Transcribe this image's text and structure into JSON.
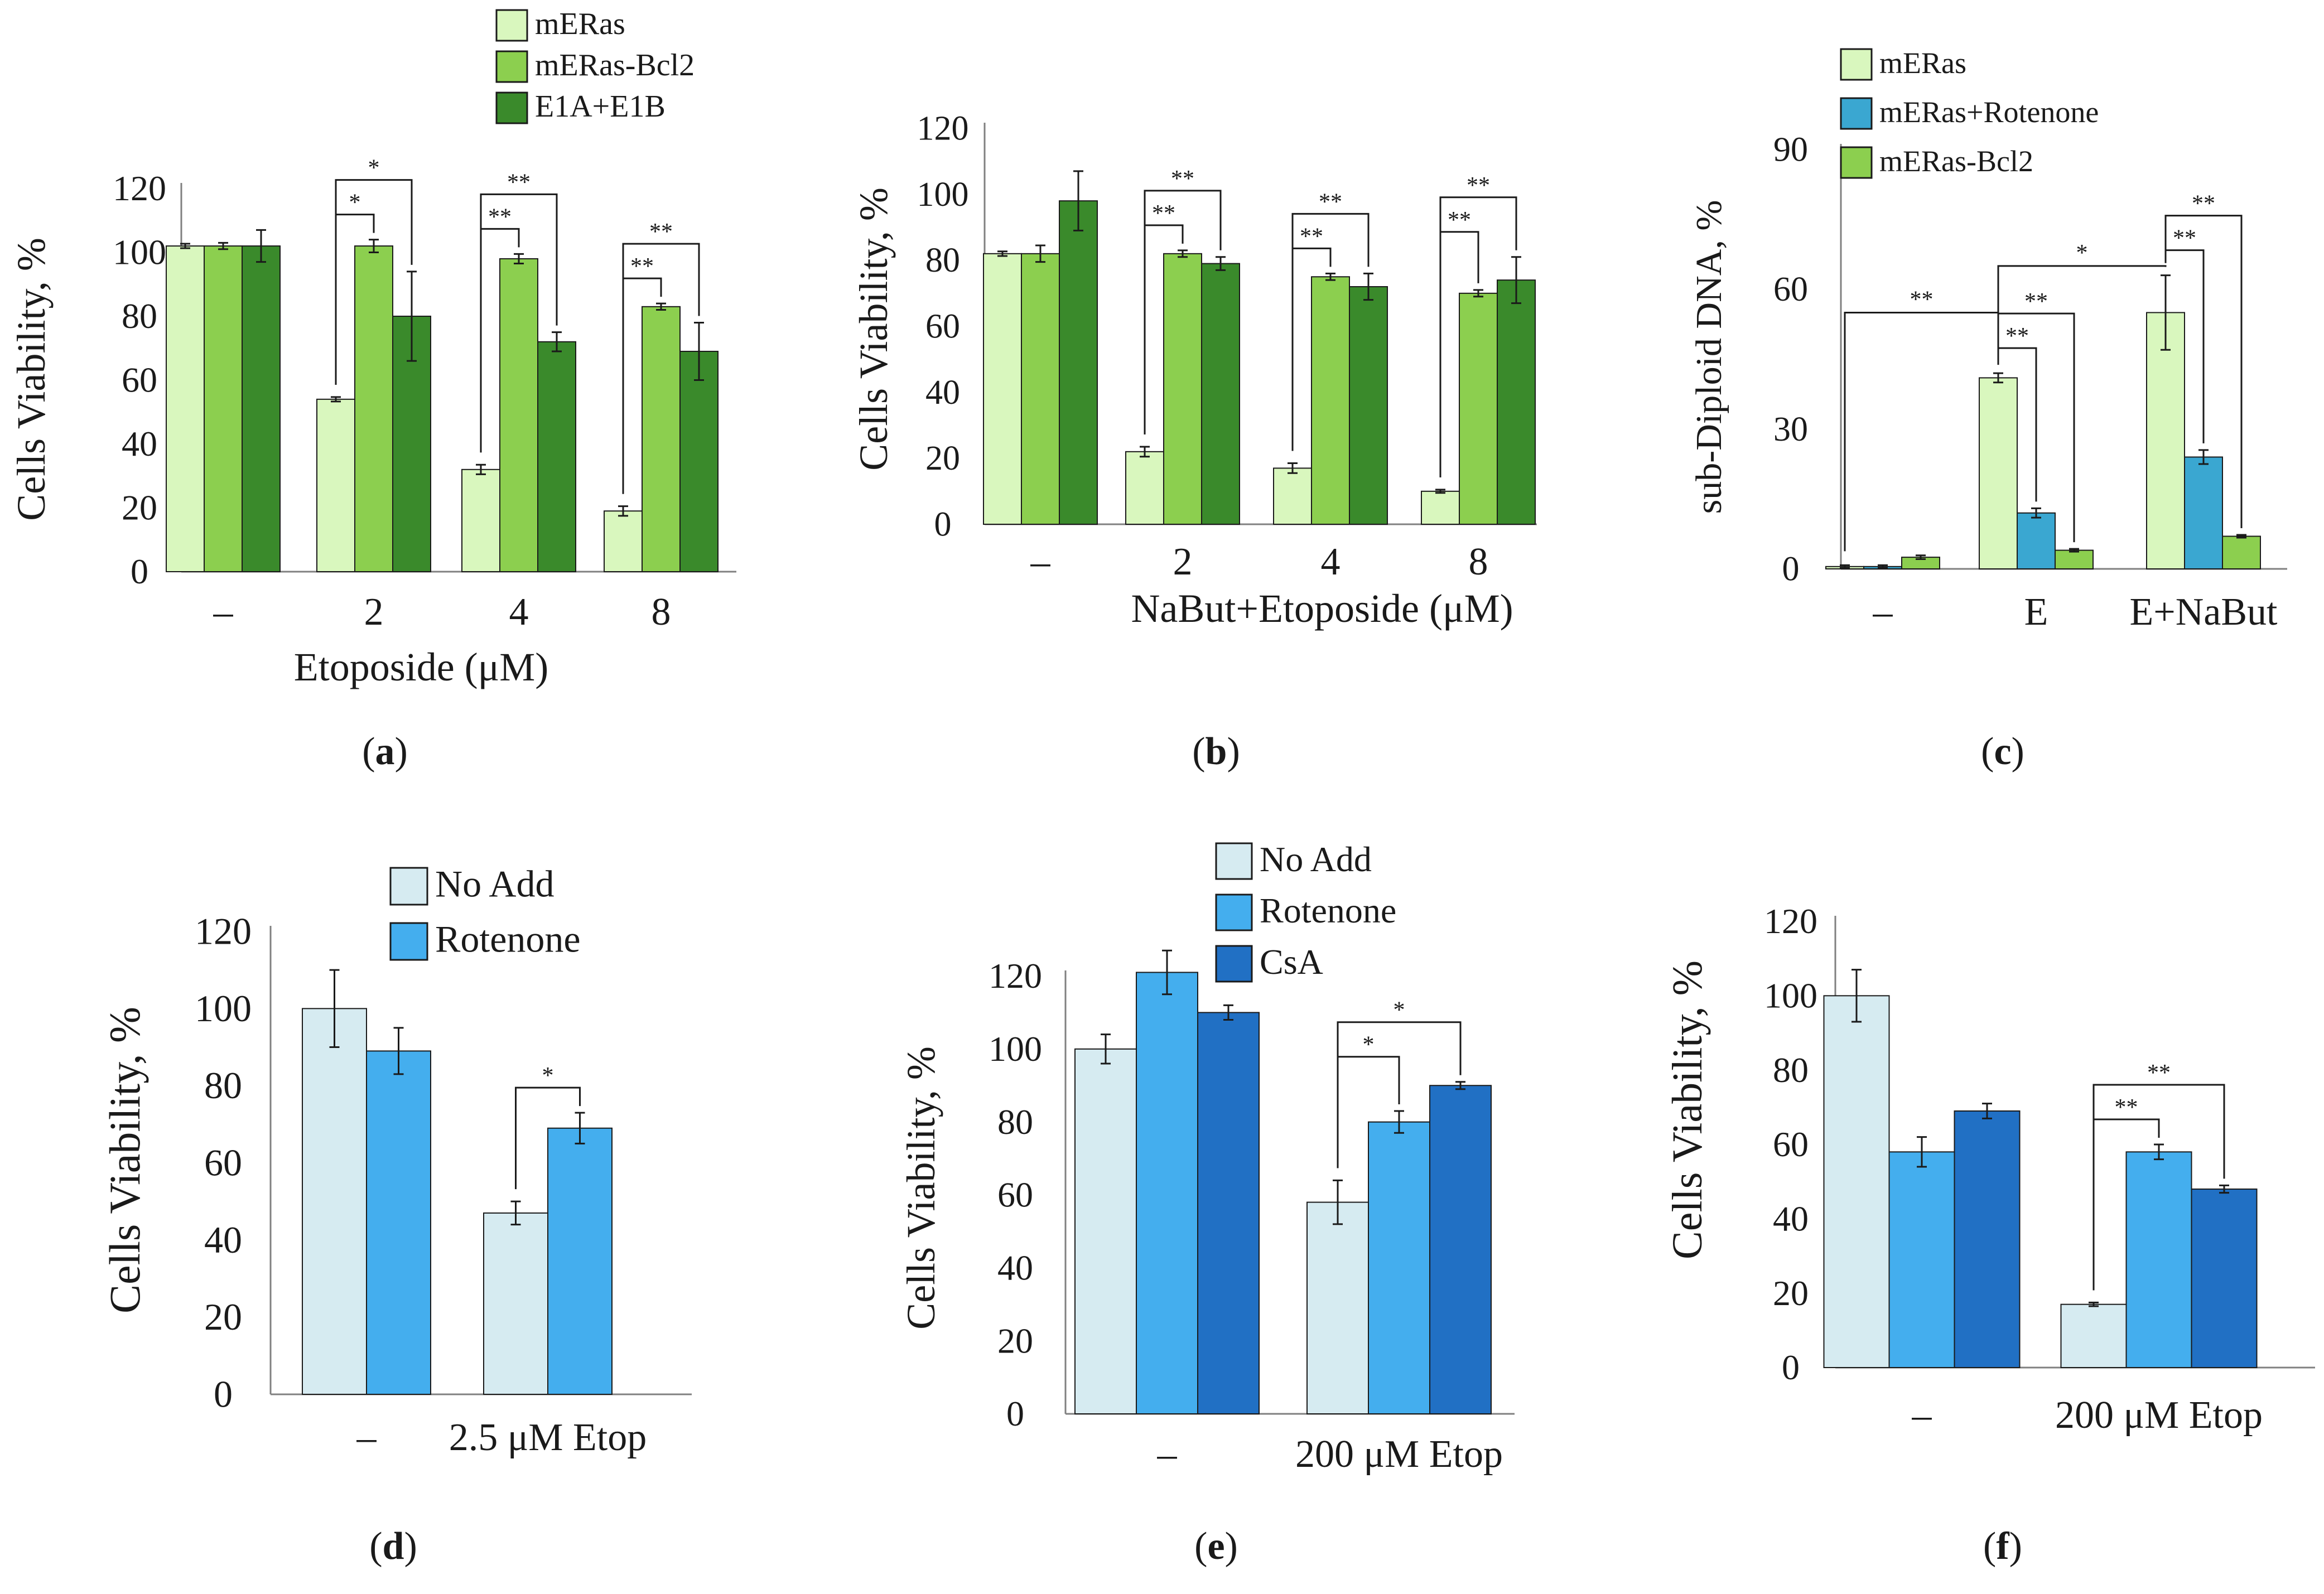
{
  "colors": {
    "light_green": "#d9f7be",
    "mid_green": "#8ccf4f",
    "dark_green": "#3a8a2b",
    "light_blue": "#d6ebf1",
    "mid_blue": "#44aeee",
    "teal_blue": "#3aa7d1",
    "dark_blue": "#2170c4",
    "axis": "#808080",
    "ink": "#1a1a1a"
  },
  "chart_data": [
    {
      "id": "a",
      "type": "bar",
      "panel_label": "(a)",
      "title": "",
      "xlabel": "Etoposide (μM)",
      "ylabel": "Cells Viability,  %",
      "ylim": [
        0,
        120
      ],
      "yticks": [
        "0",
        "20",
        "40",
        "60",
        "80",
        "100",
        "120"
      ],
      "categories": [
        "–",
        "2",
        "4",
        "8"
      ],
      "legend": [
        "mERas",
        "mERas-Bcl2",
        "E1A+E1B"
      ],
      "series": [
        {
          "name": "mERas",
          "color": "#d9f7be",
          "values": [
            102,
            54,
            32,
            19
          ],
          "errors": [
            0.7,
            0.7,
            1.5,
            1.5
          ]
        },
        {
          "name": "mERas-Bcl2",
          "color": "#8ccf4f",
          "values": [
            102,
            102,
            98,
            83
          ],
          "errors": [
            1.0,
            2.0,
            1.5,
            1.0
          ]
        },
        {
          "name": "E1A+E1B",
          "color": "#3a8a2b",
          "values": [
            102,
            80,
            72,
            69
          ],
          "errors": [
            5.0,
            14.0,
            3.0,
            9.0
          ]
        }
      ],
      "significance": [
        {
          "group": 1,
          "from": 0,
          "to": 1,
          "label": "*"
        },
        {
          "group": 1,
          "from": 0,
          "to": 2,
          "label": "*"
        },
        {
          "group": 2,
          "from": 0,
          "to": 1,
          "label": "**"
        },
        {
          "group": 2,
          "from": 0,
          "to": 2,
          "label": "**"
        },
        {
          "group": 3,
          "from": 0,
          "to": 1,
          "label": "**"
        },
        {
          "group": 3,
          "from": 0,
          "to": 2,
          "label": "**"
        }
      ]
    },
    {
      "id": "b",
      "type": "bar",
      "panel_label": "(b)",
      "title": "",
      "xlabel": "NaBut+Etoposide (μM)",
      "ylabel": "Cells Viability, %",
      "ylim": [
        0,
        120
      ],
      "yticks": [
        "0",
        "20",
        "40",
        "60",
        "80",
        "100",
        "120"
      ],
      "categories": [
        "–",
        "2",
        "4",
        "8"
      ],
      "legend": [],
      "series": [
        {
          "name": "mERas",
          "color": "#d9f7be",
          "values": [
            82,
            22,
            17,
            10
          ],
          "errors": [
            0.7,
            1.5,
            1.5,
            0.5
          ]
        },
        {
          "name": "mERas-Bcl2",
          "color": "#8ccf4f",
          "values": [
            82,
            82,
            75,
            70
          ],
          "errors": [
            2.5,
            1.0,
            1.0,
            1.0
          ]
        },
        {
          "name": "E1A+E1B",
          "color": "#3a8a2b",
          "values": [
            98,
            79,
            72,
            74
          ],
          "errors": [
            9.0,
            2.0,
            4.0,
            7.0
          ]
        }
      ],
      "significance": [
        {
          "group": 1,
          "from": 0,
          "to": 1,
          "label": "**"
        },
        {
          "group": 1,
          "from": 0,
          "to": 2,
          "label": "**"
        },
        {
          "group": 2,
          "from": 0,
          "to": 1,
          "label": "**"
        },
        {
          "group": 2,
          "from": 0,
          "to": 2,
          "label": "**"
        },
        {
          "group": 3,
          "from": 0,
          "to": 1,
          "label": "**"
        },
        {
          "group": 3,
          "from": 0,
          "to": 2,
          "label": "**"
        }
      ]
    },
    {
      "id": "c",
      "type": "bar",
      "panel_label": "(c)",
      "title": "",
      "xlabel": "",
      "ylabel": "sub-Diploid DNA, %",
      "ylim": [
        0,
        90
      ],
      "yticks": [
        "0",
        "30",
        "60",
        "90"
      ],
      "categories": [
        "–",
        "E",
        "E+NaBut"
      ],
      "legend": [
        "mERas",
        "mERas+Rotenone",
        "mERas-Bcl2"
      ],
      "series": [
        {
          "name": "mERas",
          "color": "#d9f7be",
          "values": [
            0.5,
            41,
            55
          ],
          "errors": [
            0.3,
            1.0,
            8.0
          ]
        },
        {
          "name": "mERas+Rotenone",
          "color": "#3aa7d1",
          "values": [
            0.5,
            12,
            24
          ],
          "errors": [
            0.3,
            1.0,
            1.5
          ]
        },
        {
          "name": "mERas-Bcl2",
          "color": "#8ccf4f",
          "values": [
            2.5,
            4,
            7
          ],
          "errors": [
            0.4,
            0.3,
            0.3
          ]
        }
      ],
      "significance": [
        {
          "group": 1,
          "from": 0,
          "to": 1,
          "label": "**"
        },
        {
          "group": 1,
          "from": 0,
          "to": 2,
          "label": "**"
        },
        {
          "group": 2,
          "from": 0,
          "to": 1,
          "label": "**"
        },
        {
          "group": 2,
          "from": 0,
          "to": 2,
          "label": "**"
        }
      ],
      "group_significance": [
        {
          "from": 0,
          "to": 1,
          "label": "**"
        },
        {
          "from": 1,
          "to": 2,
          "label": "*"
        }
      ]
    },
    {
      "id": "d",
      "type": "bar",
      "panel_label": "(d)",
      "title": "",
      "xlabel": "",
      "ylabel": "Cells Viability,  %",
      "ylim": [
        0,
        120
      ],
      "yticks": [
        "0",
        "20",
        "40",
        "60",
        "80",
        "100",
        "120"
      ],
      "categories": [
        "–",
        "2.5 μM Etop"
      ],
      "legend": [
        "No Add",
        "Rotenone"
      ],
      "series": [
        {
          "name": "No Add",
          "color": "#d6ebf1",
          "values": [
            100,
            47
          ],
          "errors": [
            10.0,
            3.0
          ]
        },
        {
          "name": "Rotenone",
          "color": "#44aeee",
          "values": [
            89,
            69
          ],
          "errors": [
            6.0,
            4.0
          ]
        }
      ],
      "significance": [
        {
          "group": 1,
          "from": 0,
          "to": 1,
          "label": "*"
        }
      ]
    },
    {
      "id": "e",
      "type": "bar",
      "panel_label": "(e)",
      "title": "",
      "xlabel": "",
      "ylabel": "Cells Viability, %",
      "ylim": [
        0,
        120
      ],
      "yticks": [
        "0",
        "20",
        "40",
        "60",
        "80",
        "100",
        "120"
      ],
      "categories": [
        "–",
        "200 μM Etop"
      ],
      "legend": [
        "No Add",
        "Rotenone",
        "CsA"
      ],
      "series": [
        {
          "name": "No Add",
          "color": "#d6ebf1",
          "values": [
            100,
            58
          ],
          "errors": [
            4.0,
            6.0
          ]
        },
        {
          "name": "Rotenone",
          "color": "#44aeee",
          "values": [
            121,
            80
          ],
          "errors": [
            6.0,
            3.0
          ]
        },
        {
          "name": "CsA",
          "color": "#2170c4",
          "values": [
            110,
            90
          ],
          "errors": [
            2.0,
            1.0
          ]
        }
      ],
      "significance": [
        {
          "group": 1,
          "from": 0,
          "to": 1,
          "label": "*"
        },
        {
          "group": 1,
          "from": 0,
          "to": 2,
          "label": "*"
        }
      ]
    },
    {
      "id": "f",
      "type": "bar",
      "panel_label": "(f)",
      "title": "",
      "xlabel": "",
      "ylabel": "Cells Viability, %",
      "ylim": [
        0,
        120
      ],
      "yticks": [
        "0",
        "20",
        "40",
        "60",
        "80",
        "100",
        "120"
      ],
      "categories": [
        "–",
        "200 μM Etop"
      ],
      "legend": [],
      "series": [
        {
          "name": "No Add",
          "color": "#d6ebf1",
          "values": [
            100,
            17
          ],
          "errors": [
            7.0,
            0.5
          ]
        },
        {
          "name": "Rotenone",
          "color": "#44aeee",
          "values": [
            58,
            58
          ],
          "errors": [
            4.0,
            2.0
          ]
        },
        {
          "name": "CsA",
          "color": "#2170c4",
          "values": [
            69,
            48
          ],
          "errors": [
            2.0,
            1.0
          ]
        }
      ],
      "significance": [
        {
          "group": 1,
          "from": 0,
          "to": 1,
          "label": "**"
        },
        {
          "group": 1,
          "from": 0,
          "to": 2,
          "label": "**"
        }
      ]
    }
  ]
}
